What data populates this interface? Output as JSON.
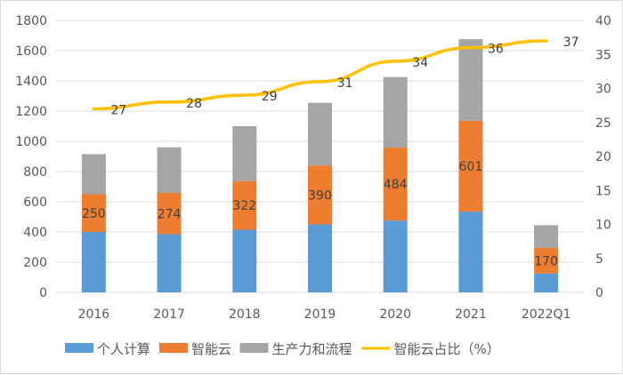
{
  "chart_data": {
    "type": "bar",
    "stacked": true,
    "categories": [
      "2016",
      "2017",
      "2018",
      "2019",
      "2020",
      "2021",
      "2022Q1"
    ],
    "series": [
      {
        "name": "个人计算",
        "type": "bar",
        "axis": "left",
        "color": "#5b9bd5",
        "values": [
          400,
          385,
          415,
          450,
          475,
          535,
          125
        ]
      },
      {
        "name": "智能云",
        "type": "bar",
        "axis": "left",
        "color": "#ed7d31",
        "values": [
          250,
          274,
          322,
          390,
          484,
          601,
          170
        ],
        "labels": [
          "250",
          "274",
          "322",
          "390",
          "484",
          "601",
          "170"
        ]
      },
      {
        "name": "生产力和流程",
        "type": "bar",
        "axis": "left",
        "color": "#a5a5a5",
        "values": [
          265,
          301,
          363,
          415,
          466,
          540,
          150
        ]
      },
      {
        "name": "智能云占比（%）",
        "type": "line",
        "axis": "right",
        "color": "#ffc000",
        "values": [
          27,
          28,
          29,
          31,
          34,
          36,
          37
        ],
        "labels": [
          "27",
          "28",
          "29",
          "31",
          "34",
          "36",
          "37"
        ]
      }
    ],
    "left_axis": {
      "ylim": [
        0,
        1800
      ],
      "ticks": [
        "0",
        "200",
        "400",
        "600",
        "800",
        "1000",
        "1200",
        "1400",
        "1600",
        "1800"
      ]
    },
    "right_axis": {
      "ylim": [
        0,
        40
      ],
      "ticks": [
        "0",
        "5",
        "10",
        "15",
        "20",
        "25",
        "30",
        "35",
        "40"
      ]
    },
    "grid": true,
    "legend": "bottom",
    "title": "",
    "xlabel": "",
    "ylabel": ""
  }
}
